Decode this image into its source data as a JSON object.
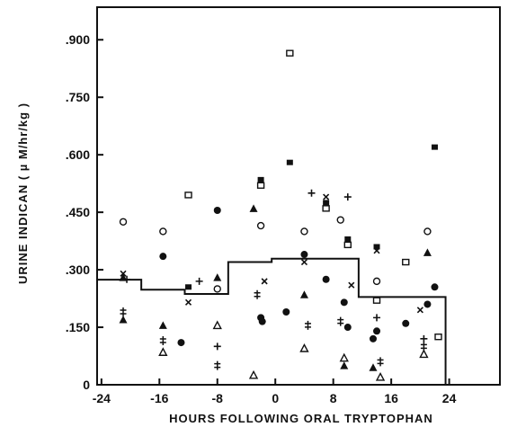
{
  "chart_data": {
    "type": "scatter",
    "ylabel": "URINE INDICAN ( µ M/hr/kg )",
    "xlabel": "HOURS FOLLOWING ORAL TRYPTOPHAN",
    "xlim": [
      -24.6,
      31
    ],
    "xticks": [
      -24,
      -16,
      -8,
      0,
      8,
      16,
      24
    ],
    "ylim": [
      0,
      0.985
    ],
    "yticks": [
      0,
      {
        "value": 0.15,
        "label": ".150"
      },
      {
        "value": 0.3,
        "label": ".300"
      },
      {
        "value": 0.45,
        "label": ".450"
      },
      {
        "value": 0.6,
        "label": ".600"
      },
      {
        "value": 0.75,
        "label": ".750"
      },
      {
        "value": 0.9,
        "label": ".900"
      }
    ],
    "color": "#111111",
    "series": [
      {
        "marker": "open-circle",
        "x": [
          -21,
          -15.5,
          -8,
          -2,
          4,
          9,
          14,
          21
        ],
        "values": [
          0.425,
          0.4,
          0.25,
          0.415,
          0.4,
          0.43,
          0.27,
          0.4
        ]
      },
      {
        "marker": "filled-circle",
        "x": [
          -15.5,
          -13,
          -8,
          -2,
          -1.8,
          1.5,
          4,
          7,
          9.5,
          10,
          13.5,
          14,
          18,
          21,
          22
        ],
        "values": [
          0.335,
          0.11,
          0.455,
          0.175,
          0.165,
          0.19,
          0.34,
          0.275,
          0.215,
          0.15,
          0.12,
          0.14,
          0.16,
          0.21,
          0.255
        ]
      },
      {
        "marker": "open-square",
        "x": [
          -12,
          -2,
          2,
          7,
          10,
          14,
          18,
          22.5
        ],
        "values": [
          0.495,
          0.52,
          0.865,
          0.46,
          0.365,
          0.22,
          0.32,
          0.125
        ]
      },
      {
        "marker": "filled-square",
        "x": [
          -12,
          -2,
          2,
          7,
          10,
          14,
          22
        ],
        "values": [
          0.255,
          0.535,
          0.58,
          0.475,
          0.38,
          0.36,
          0.62
        ]
      },
      {
        "marker": "open-triangle",
        "x": [
          -15.5,
          -8,
          -3,
          4,
          9.5,
          14.5,
          20.5
        ],
        "values": [
          0.085,
          0.155,
          0.025,
          0.095,
          0.07,
          0.02,
          0.08
        ]
      },
      {
        "marker": "filled-triangle",
        "x": [
          -21,
          -21,
          -15.5,
          -8,
          -3,
          4,
          9.5,
          13.5,
          21
        ],
        "values": [
          0.28,
          0.17,
          0.155,
          0.28,
          0.46,
          0.235,
          0.05,
          0.045,
          0.345
        ]
      },
      {
        "marker": "plus",
        "x": [
          -20.5,
          -10.5,
          -8,
          5,
          10,
          14,
          20.5
        ],
        "values": [
          0.275,
          0.27,
          0.1,
          0.5,
          0.49,
          0.175,
          0.12
        ]
      },
      {
        "marker": "double-cross",
        "x": [
          -21,
          -15.5,
          -8,
          -2.5,
          4.5,
          9,
          14.5,
          20.5
        ],
        "values": [
          0.19,
          0.115,
          0.05,
          0.235,
          0.155,
          0.165,
          0.06,
          0.1
        ]
      },
      {
        "marker": "x",
        "x": [
          -21,
          -12,
          -1.5,
          4,
          7,
          10.5,
          14,
          20
        ],
        "values": [
          0.29,
          0.215,
          0.27,
          0.32,
          0.49,
          0.26,
          0.35,
          0.195
        ]
      }
    ],
    "step": {
      "x": [
        -24.6,
        -18.5,
        -12.5,
        -6.5,
        -0.5,
        11.5,
        23.5
      ],
      "values": [
        0.274,
        0.248,
        0.237,
        0.32,
        0.329,
        0.229,
        0
      ]
    }
  }
}
